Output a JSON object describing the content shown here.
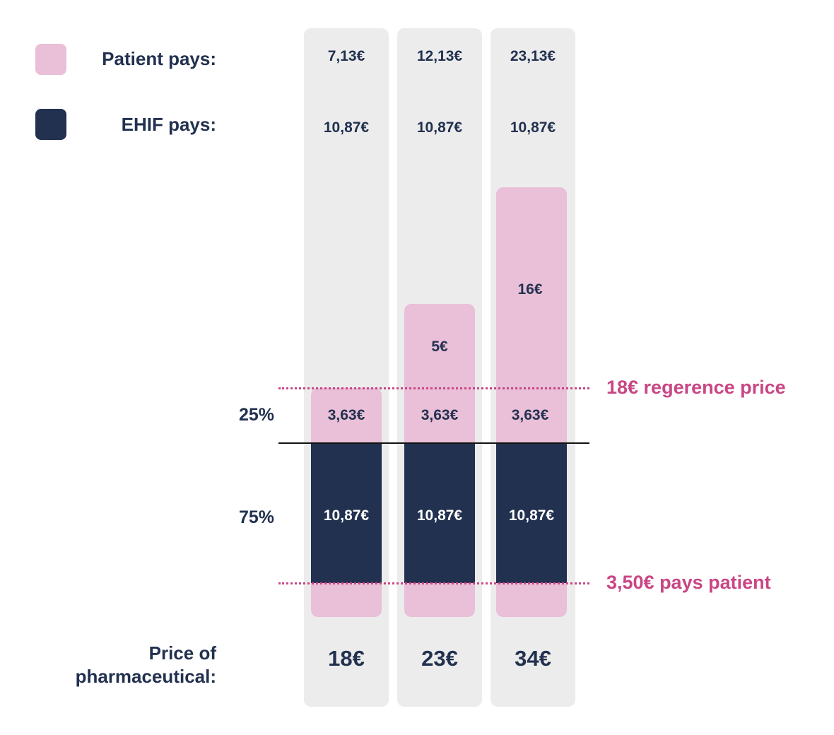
{
  "legend": [
    {
      "label": "Patient pays:",
      "color": "#eabfd8"
    },
    {
      "label": "EHIF pays:",
      "color": "#22314f"
    }
  ],
  "colors": {
    "patient": "#eabfd8",
    "ehif": "#22314f",
    "column_bg": "#ececec",
    "reference": "#c94684"
  },
  "x_axis_title": "Price of pharmaceutical:",
  "percent_labels": {
    "patient_share": "25%",
    "ehif_share": "75%"
  },
  "reference_lines": {
    "reference_price": {
      "label": "18€ regerence price",
      "value": 18
    },
    "fixed_fee": {
      "label": "3,50€ pays patient",
      "value": 3.5
    }
  },
  "columns": [
    {
      "price_label": "18€",
      "patient_total": "7,13€",
      "ehif_total": "10,87€",
      "share_25": "3,63€",
      "share_75": "10,87€",
      "extra_label": ""
    },
    {
      "price_label": "23€",
      "patient_total": "12,13€",
      "ehif_total": "10,87€",
      "share_25": "3,63€",
      "share_75": "10,87€",
      "extra_label": "5€"
    },
    {
      "price_label": "34€",
      "patient_total": "23,13€",
      "ehif_total": "10,87€",
      "share_25": "3,63€",
      "share_75": "10,87€",
      "extra_label": "16€"
    }
  ],
  "chart_data": {
    "type": "bar",
    "stacked": true,
    "categories": [
      "18€",
      "23€",
      "34€"
    ],
    "series": [
      {
        "name": "Patient pays:",
        "values": [
          7.13,
          12.13,
          23.13
        ]
      },
      {
        "name": "EHIF pays:",
        "values": [
          10.87,
          10.87,
          10.87
        ]
      }
    ],
    "stack_segments_bottom_to_top": [
      {
        "values": [
          3.5,
          3.5,
          3.5
        ],
        "payer": "patient"
      },
      {
        "values": [
          10.87,
          10.87,
          10.87
        ],
        "payer": "ehif"
      },
      {
        "values": [
          3.63,
          3.63,
          3.63
        ],
        "payer": "patient"
      },
      {
        "values": [
          0,
          5,
          16
        ],
        "payer": "patient"
      }
    ],
    "xlabel": "Price of pharmaceutical:",
    "ylabel": "",
    "reference_lines": [
      18,
      3.5
    ],
    "legend_position": "top-left",
    "grid": false
  }
}
